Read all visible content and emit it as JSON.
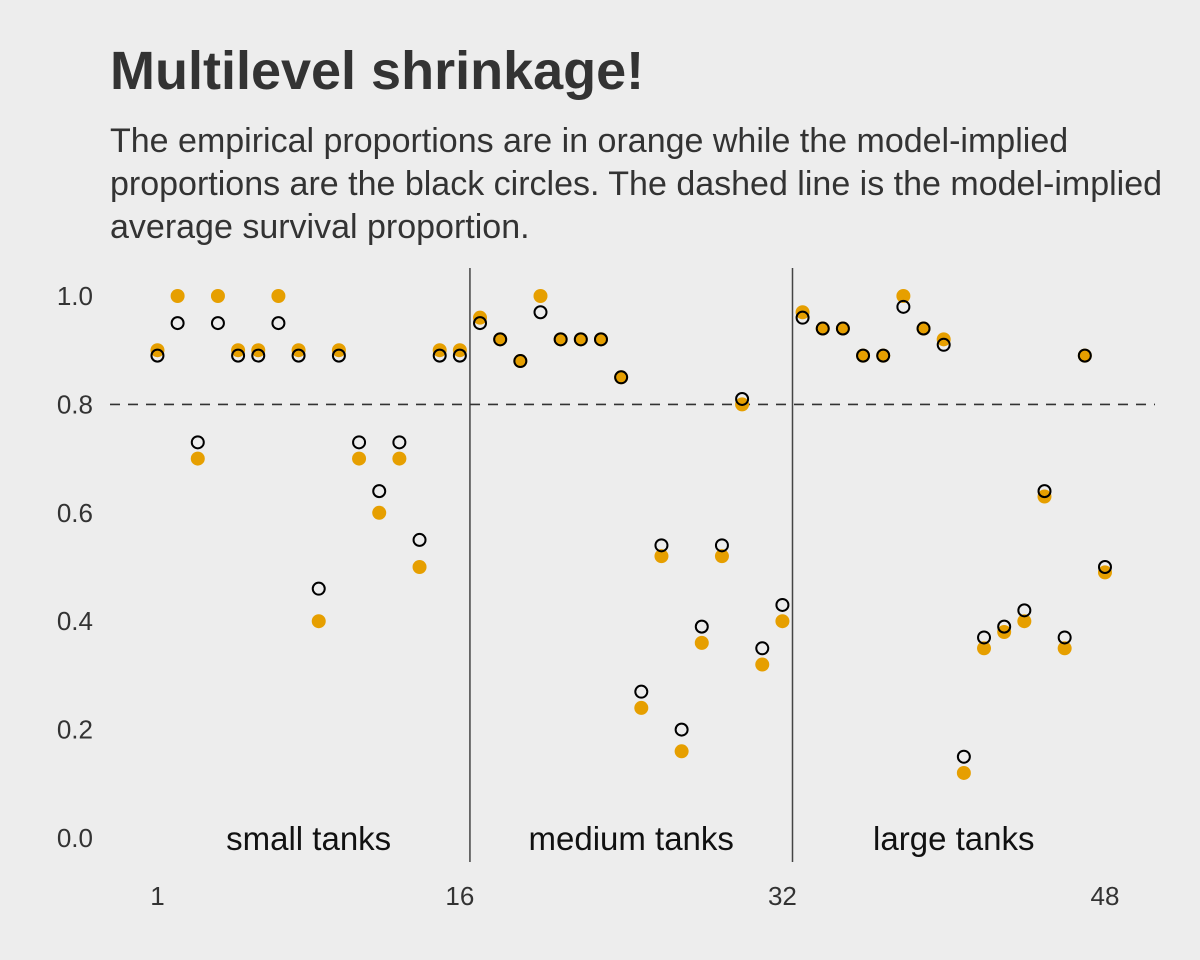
{
  "chart_data": {
    "type": "scatter",
    "title": "Multilevel shrinkage!",
    "subtitle": "The empirical proportions are in orange while the model-implied proportions are the black circles. The dashed line is the model-implied average survival proportion.",
    "xlabel": "",
    "ylabel": "",
    "xlim": [
      0,
      50
    ],
    "ylim": [
      0,
      1.05
    ],
    "x_ticks": [
      1,
      16,
      32,
      48
    ],
    "y_ticks": [
      "0.0",
      "0.2",
      "0.4",
      "0.6",
      "0.8",
      "1.0"
    ],
    "y_tick_values": [
      0,
      0.2,
      0.4,
      0.6,
      0.8,
      1.0
    ],
    "grid": false,
    "reference_line": {
      "y": 0.8,
      "style": "dashed"
    },
    "dividers_x": [
      16.5,
      32.5
    ],
    "groups": [
      {
        "label": "small tanks",
        "x_center": 8.5
      },
      {
        "label": "medium tanks",
        "x_center": 24.5
      },
      {
        "label": "large tanks",
        "x_center": 40.5
      }
    ],
    "colors": {
      "empirical": "#e69f00",
      "model": "#000000",
      "background": "#ededed"
    },
    "series": [
      {
        "key": "empirical",
        "values": [
          0.9,
          1.0,
          0.7,
          1.0,
          0.9,
          0.9,
          1.0,
          0.9,
          0.4,
          0.9,
          0.7,
          0.6,
          0.7,
          0.5,
          0.9,
          0.9,
          0.96,
          0.92,
          0.88,
          1.0,
          0.92,
          0.92,
          0.92,
          0.85,
          0.24,
          0.52,
          0.16,
          0.36,
          0.52,
          0.8,
          0.32,
          0.4,
          0.97,
          0.94,
          0.94,
          0.89,
          0.89,
          1.0,
          0.94,
          0.92,
          0.12,
          0.35,
          0.38,
          0.4,
          0.63,
          0.35,
          0.89,
          0.49
        ]
      },
      {
        "key": "model",
        "values": [
          0.89,
          0.95,
          0.73,
          0.95,
          0.89,
          0.89,
          0.95,
          0.89,
          0.46,
          0.89,
          0.73,
          0.64,
          0.73,
          0.55,
          0.89,
          0.89,
          0.95,
          0.92,
          0.88,
          0.97,
          0.92,
          0.92,
          0.92,
          0.85,
          0.27,
          0.54,
          0.2,
          0.39,
          0.54,
          0.81,
          0.35,
          0.43,
          0.96,
          0.94,
          0.94,
          0.89,
          0.89,
          0.98,
          0.94,
          0.91,
          0.15,
          0.37,
          0.39,
          0.42,
          0.64,
          0.37,
          0.89,
          0.5
        ]
      }
    ]
  }
}
